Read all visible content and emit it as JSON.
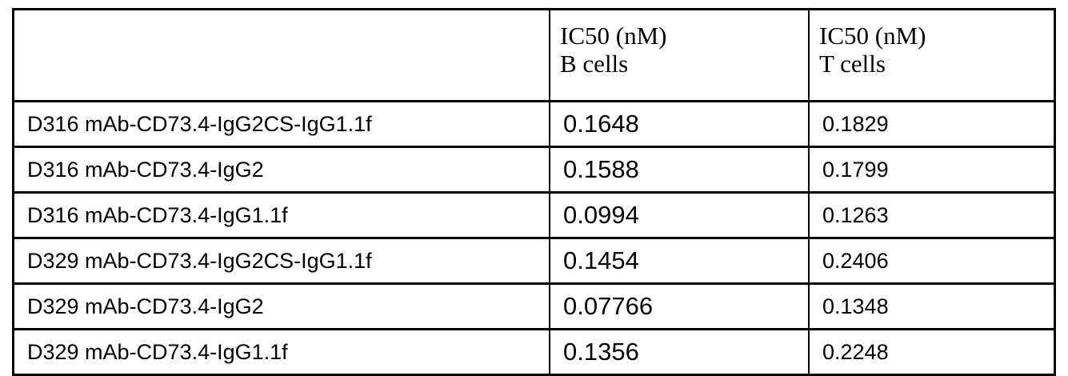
{
  "table": {
    "headers": [
      {
        "line1": "",
        "line2": ""
      },
      {
        "line1": "IC50 (nM)",
        "line2": "B cells"
      },
      {
        "line1": "IC50 (nM)",
        "line2": "T cells"
      }
    ],
    "rows": [
      {
        "name": "D316 mAb-CD73.4-IgG2CS-IgG1.1f",
        "b_cells": "0.1648",
        "t_cells": "0.1829"
      },
      {
        "name": "D316 mAb-CD73.4-IgG2",
        "b_cells": "0.1588",
        "t_cells": "0.1799"
      },
      {
        "name": "D316 mAb-CD73.4-IgG1.1f",
        "b_cells": "0.0994",
        "t_cells": "0.1263"
      },
      {
        "name": "D329 mAb-CD73.4-IgG2CS-IgG1.1f",
        "b_cells": "0.1454",
        "t_cells": "0.2406"
      },
      {
        "name": "D329 mAb-CD73.4-IgG2",
        "b_cells": "0.07766",
        "t_cells": "0.1348"
      },
      {
        "name": "D329 mAb-CD73.4-IgG1.1f",
        "b_cells": "0.1356",
        "t_cells": "0.2248"
      }
    ]
  }
}
